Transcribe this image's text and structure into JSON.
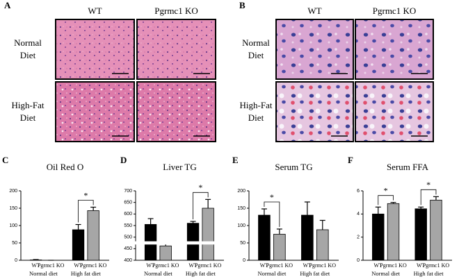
{
  "panels": [
    {
      "label": "A",
      "columns": [
        "WT",
        "Pgrmc1 KO"
      ],
      "rows": [
        [
          "Normal",
          "Diet"
        ],
        [
          "High-Fat",
          "Diet"
        ]
      ]
    },
    {
      "label": "B",
      "columns": [
        "WT",
        "Pgrmc1 KO"
      ],
      "rows": [
        [
          "Normal",
          "Diet"
        ],
        [
          "High-Fat",
          "Diet"
        ]
      ]
    }
  ],
  "chart_data": [
    {
      "type": "bar",
      "panel": "C",
      "title": "Oil Red O",
      "categories": [
        "WT",
        "Pgrmc1 KO",
        "WT",
        "Pgrmc1 KO"
      ],
      "group_labels": [
        "Normal diet",
        "High fat diet"
      ],
      "values": [
        1,
        0,
        88,
        143
      ],
      "errors": [
        1,
        0,
        15,
        10
      ],
      "colors": [
        "#000000",
        "#a6a6a6",
        "#000000",
        "#a6a6a6"
      ],
      "ylim": [
        0,
        200
      ],
      "yticks": [
        0,
        50,
        100,
        150,
        200
      ],
      "significance": [
        {
          "pair": [
            2,
            3
          ],
          "label": "*"
        }
      ]
    },
    {
      "type": "bar",
      "panel": "D",
      "title": "Liver TG",
      "categories": [
        "WT",
        "Pgrmc1 KO",
        "WT",
        "Pgrmc1 KO"
      ],
      "group_labels": [
        "Normal diet",
        "High fat diet"
      ],
      "values": [
        555,
        462,
        560,
        625
      ],
      "errors": [
        25,
        12,
        8,
        38
      ],
      "colors": [
        "#000000",
        "#a6a6a6",
        "#000000",
        "#a6a6a6"
      ],
      "ylim": [
        400,
        700
      ],
      "yticks": [
        400,
        450,
        500,
        550,
        600,
        650,
        700
      ],
      "axis_break": [
        468,
        482
      ],
      "significance": [
        {
          "pair": [
            2,
            3
          ],
          "label": "*"
        }
      ]
    },
    {
      "type": "bar",
      "panel": "E",
      "title": "Serum TG",
      "categories": [
        "WT",
        "Pgrmc1 KO",
        "WT",
        "Pgrmc1 KO"
      ],
      "group_labels": [
        "Normal diet",
        "High fat diet"
      ],
      "values": [
        130,
        75,
        130,
        88
      ],
      "errors": [
        18,
        15,
        38,
        27
      ],
      "colors": [
        "#000000",
        "#a6a6a6",
        "#000000",
        "#a6a6a6"
      ],
      "ylim": [
        0,
        200
      ],
      "yticks": [
        0,
        50,
        100,
        150,
        200
      ],
      "significance": [
        {
          "pair": [
            0,
            1
          ],
          "label": "*"
        }
      ]
    },
    {
      "type": "bar",
      "panel": "F",
      "title": "Serum FFA",
      "categories": [
        "WT",
        "Pgrmc1 KO",
        "WT",
        "Pgrmc1 KO"
      ],
      "group_labels": [
        "Normal diet",
        "High fat diet"
      ],
      "values": [
        4.0,
        4.9,
        4.45,
        5.2
      ],
      "errors": [
        0.6,
        0.1,
        0.15,
        0.3
      ],
      "colors": [
        "#000000",
        "#a6a6a6",
        "#000000",
        "#a6a6a6"
      ],
      "ylim": [
        0,
        6
      ],
      "yticks": [
        0,
        2,
        4,
        6
      ],
      "significance": [
        {
          "pair": [
            0,
            1
          ],
          "label": "*"
        },
        {
          "pair": [
            2,
            3
          ],
          "label": "*"
        }
      ]
    }
  ]
}
